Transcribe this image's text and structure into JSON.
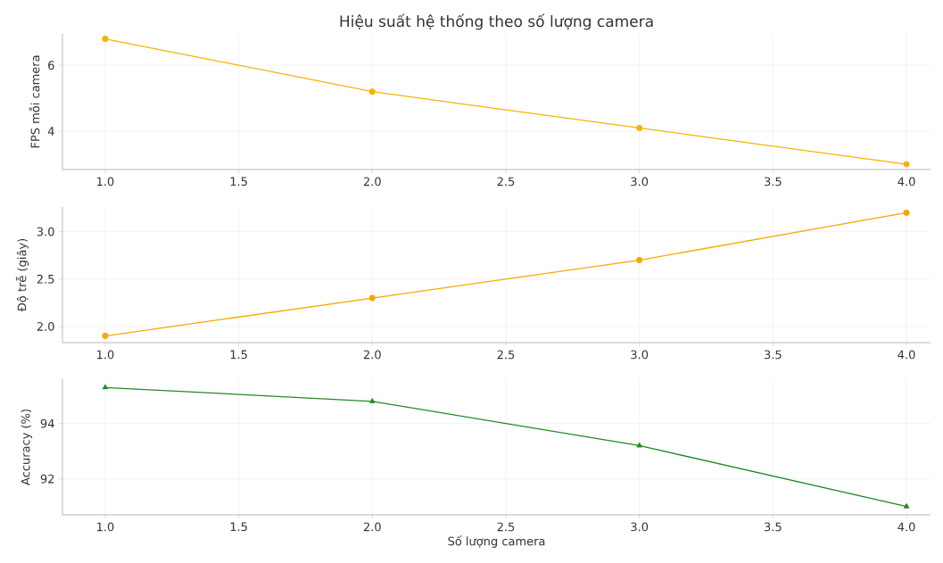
{
  "chart_data": [
    {
      "type": "line",
      "title": "Hiệu suất hệ thống theo số lượng camera",
      "ylabel": "FPS mỗi camera",
      "x": [
        1,
        2,
        3,
        4
      ],
      "values": [
        6.8,
        5.2,
        4.1,
        3.0
      ],
      "color": "#f5b400",
      "marker": "circle",
      "grid": true,
      "xlim": [
        0.84,
        4.09
      ],
      "ylim": [
        2.84,
        6.95
      ],
      "xticks": [
        {
          "value": 1,
          "label": "1.0"
        },
        {
          "value": 1.5,
          "label": "1.5"
        },
        {
          "value": 2,
          "label": "2.0"
        },
        {
          "value": 2.5,
          "label": "2.5"
        },
        {
          "value": 3,
          "label": "3.0"
        },
        {
          "value": 3.5,
          "label": "3.5"
        },
        {
          "value": 4,
          "label": "4.0"
        }
      ],
      "yticks": [
        4,
        6
      ]
    },
    {
      "type": "line",
      "ylabel": "Độ trễ (giây)",
      "x": [
        1,
        2,
        3,
        4
      ],
      "values": [
        1.9,
        2.3,
        2.7,
        3.2
      ],
      "color": "#f5a800",
      "marker": "circle",
      "grid": true,
      "xlim": [
        0.84,
        4.09
      ],
      "ylim": [
        1.83,
        3.26
      ],
      "xticks": [
        {
          "value": 1,
          "label": "1.0"
        },
        {
          "value": 1.5,
          "label": "1.5"
        },
        {
          "value": 2,
          "label": "2.0"
        },
        {
          "value": 2.5,
          "label": "2.5"
        },
        {
          "value": 3,
          "label": "3.0"
        },
        {
          "value": 3.5,
          "label": "3.5"
        },
        {
          "value": 4,
          "label": "4.0"
        }
      ],
      "yticks": [
        {
          "value": 2,
          "label": "2.0"
        },
        {
          "value": 2.5,
          "label": "2.5"
        },
        {
          "value": 3,
          "label": "3.0"
        }
      ]
    },
    {
      "type": "line",
      "ylabel": "Accuracy (%)",
      "xlabel": "Số lượng camera",
      "x": [
        1,
        2,
        3,
        4
      ],
      "values": [
        95.3,
        94.8,
        93.2,
        91.0
      ],
      "color": "#228b22",
      "marker": "triangle",
      "grid": true,
      "xlim": [
        0.84,
        4.09
      ],
      "ylim": [
        90.7,
        95.6
      ],
      "xticks": [
        {
          "value": 1,
          "label": "1.0"
        },
        {
          "value": 1.5,
          "label": "1.5"
        },
        {
          "value": 2,
          "label": "2.0"
        },
        {
          "value": 2.5,
          "label": "2.5"
        },
        {
          "value": 3,
          "label": "3.0"
        },
        {
          "value": 3.5,
          "label": "3.5"
        },
        {
          "value": 4,
          "label": "4.0"
        }
      ],
      "yticks": [
        92,
        94
      ]
    }
  ]
}
